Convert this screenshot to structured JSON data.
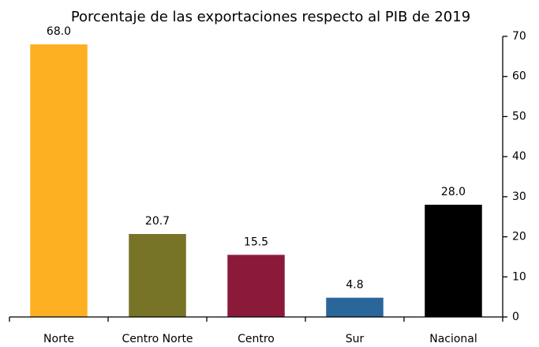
{
  "chart_data": {
    "type": "bar",
    "title": "Porcentaje de las exportaciones respecto al PIB de 2019",
    "categories": [
      "Norte",
      "Centro Norte",
      "Centro",
      "Sur",
      "Nacional"
    ],
    "values": [
      68.0,
      20.7,
      15.5,
      4.8,
      28.0
    ],
    "value_labels": [
      "68.0",
      "20.7",
      "15.5",
      "4.8",
      "28.0"
    ],
    "colors": [
      "#fdb022",
      "#777428",
      "#8b1a3a",
      "#2a6699",
      "#000000"
    ],
    "ylim": [
      0,
      70
    ],
    "yticks": [
      0,
      10,
      20,
      30,
      40,
      50,
      60,
      70
    ],
    "y_axis_side": "right"
  }
}
